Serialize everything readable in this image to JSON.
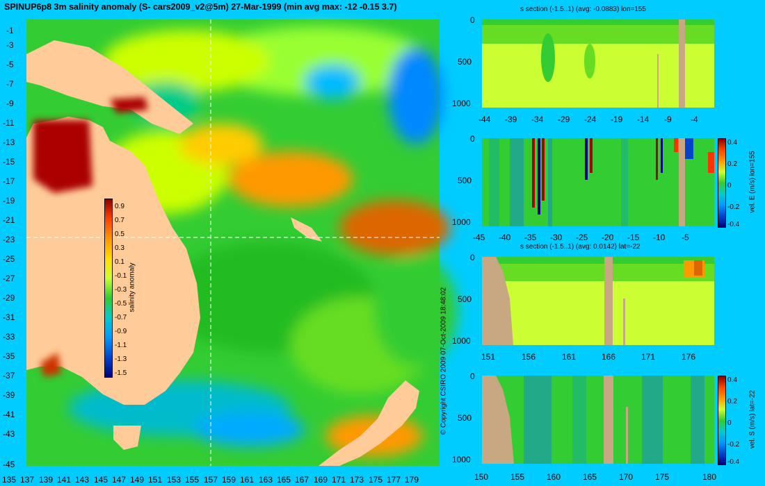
{
  "main": {
    "title": "SPINUP6p8 3m salinity anomaly (S- cars2009_v2@5m) 27-Mar-1999 (min avg max: -12 -0.15 3.7)",
    "x_ticks": [
      "135",
      "137",
      "139",
      "141",
      "143",
      "145",
      "147",
      "149",
      "151",
      "153",
      "155",
      "157",
      "159",
      "161",
      "163",
      "165",
      "167",
      "169",
      "171",
      "173",
      "175",
      "177",
      "179"
    ],
    "y_ticks": [
      "-1",
      "-3",
      "-5",
      "-7",
      "-9",
      "-11",
      "-13",
      "-15",
      "-17",
      "-19",
      "-21",
      "-23",
      "-25",
      "-27",
      "-29",
      "-31",
      "-33",
      "-35",
      "-37",
      "-39",
      "-41",
      "-43",
      "-45"
    ],
    "colorbar": {
      "label": "salinity anomaly",
      "ticks": [
        "0.9",
        "0.7",
        "0.5",
        "0.3",
        "0.1",
        "-0.1",
        "-0.3",
        "-0.5",
        "-0.7",
        "-0.9",
        "-1.1",
        "-1.3",
        "-1.5"
      ]
    },
    "copyright": "© Copyright CSIRO 2009   07-Oct-2009 18:48:02"
  },
  "panels": [
    {
      "title": "s section (-1.5..1) (avg: -0.0883) lon=155",
      "x_ticks": [
        "-44",
        "-39",
        "-34",
        "-29",
        "-24",
        "-19",
        "-14",
        "-9",
        "-4"
      ],
      "y_ticks": [
        "0",
        "500",
        "1000"
      ]
    },
    {
      "title": "",
      "x_ticks": [
        "-45",
        "-40",
        "-35",
        "-30",
        "-25",
        "-20",
        "-15",
        "-10",
        "-5"
      ],
      "y_ticks": [
        "0",
        "500",
        "1000"
      ],
      "colorbar_label": "vel. E (m/s) lon=155",
      "colorbar_ticks": [
        "0.4",
        "0.2",
        "0",
        "-0.2",
        "-0.4"
      ]
    },
    {
      "title": "s section (-1.5..1) (avg: 0.0142) lat=-22",
      "x_ticks": [
        "151",
        "156",
        "161",
        "166",
        "171",
        "176"
      ],
      "y_ticks": [
        "0",
        "500",
        "1000"
      ]
    },
    {
      "title": "",
      "x_ticks": [
        "150",
        "155",
        "160",
        "165",
        "170",
        "175",
        "180"
      ],
      "y_ticks": [
        "0",
        "500",
        "1000"
      ],
      "colorbar_label": "vel. S (m/s) lat=-22",
      "colorbar_ticks": [
        "0.4",
        "0.2",
        "0",
        "-0.2",
        "-0.4"
      ]
    }
  ],
  "colors": {
    "background": "#00ccff",
    "land_map": "#ffcc99",
    "land_section": "#c8a882",
    "field": "#33cc33"
  },
  "chart_data": [
    {
      "type": "heatmap",
      "title": "SPINUP6p8 3m salinity anomaly (S- cars2009_v2@5m) 27-Mar-1999 (min avg max: -12 -0.15 3.7)",
      "xlim": [
        135,
        180
      ],
      "ylim": [
        -45,
        0
      ],
      "value_range": [
        -1.5,
        1
      ],
      "min": -12,
      "avg": -0.15,
      "max": 3.7
    },
    {
      "type": "heatmap",
      "title": "s section (-1.5..1) (avg: -0.0883) lon=155",
      "value_range": [
        -1.5,
        1
      ],
      "avg": -0.0883
    },
    {
      "type": "heatmap",
      "ylabel": "vel. E (m/s) lon=155",
      "value_range": [
        -0.4,
        0.4
      ]
    },
    {
      "type": "heatmap",
      "title": "s section (-1.5..1) (avg: 0.0142) lat=-22",
      "value_range": [
        -1.5,
        1
      ],
      "avg": 0.0142
    },
    {
      "type": "heatmap",
      "ylabel": "vel. S (m/s) lat=-22",
      "value_range": [
        -0.4,
        0.4
      ]
    }
  ]
}
